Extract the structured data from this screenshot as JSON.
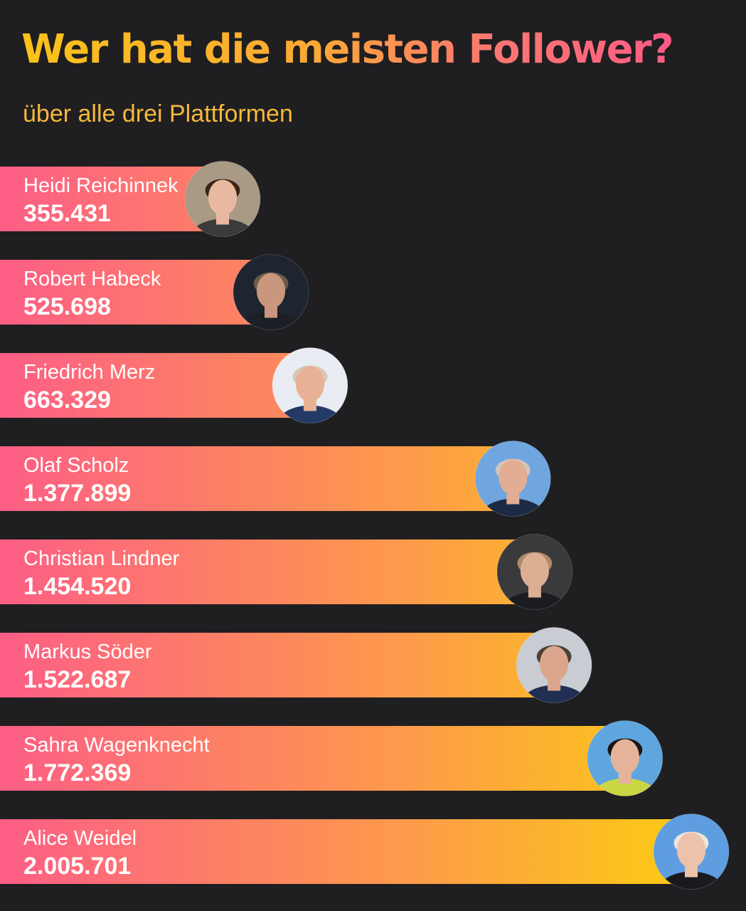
{
  "header": {
    "title": "Wer hat die meisten Follower?",
    "subtitle": "über alle drei Plattformen"
  },
  "colors": {
    "background": "#1f1e20",
    "bar_start": "#fd5e86",
    "bar_mid": "#fd9b4a",
    "bar_end": "#fcca14",
    "title_yellow": "#fbc21a",
    "title_pink": "#fc5c86"
  },
  "chart_data": {
    "type": "bar",
    "orientation": "horizontal",
    "title": "Wer hat die meisten Follower?",
    "subtitle": "über alle drei Plattformen",
    "xlabel": "",
    "ylabel": "",
    "grid": false,
    "legend": "none",
    "categories": [
      "Heidi Reichinnek",
      "Robert Habeck",
      "Friedrich Merz",
      "Olaf Scholz",
      "Christian Lindner",
      "Markus Söder",
      "Sahra Wagenknecht",
      "Alice Weidel"
    ],
    "values": [
      355431,
      525698,
      663329,
      1377899,
      1454520,
      1522687,
      1772369,
      2005701
    ],
    "value_labels": [
      "355.431",
      "525.698",
      "663.329",
      "1.377.899",
      "1.454.520",
      "1.522.687",
      "1.772.369",
      "2.005.701"
    ],
    "markers": [
      {
        "icon": "heidi-reichinnek-portrait-icon",
        "bg": "#a89a84",
        "hair": "#3a2418",
        "skin": "#e8b9a0",
        "cloth": "#3b3b3b"
      },
      {
        "icon": "robert-habeck-portrait-icon",
        "bg": "#1e2430",
        "hair": "#6a5a4a",
        "skin": "#c9977d",
        "cloth": "#1d1f26"
      },
      {
        "icon": "friedrich-merz-portrait-icon",
        "bg": "#e9ecf2",
        "hair": "#d8c7b4",
        "skin": "#e8b196",
        "cloth": "#233a66"
      },
      {
        "icon": "olaf-scholz-portrait-icon",
        "bg": "#6fa6e0",
        "hair": "#cfc6bd",
        "skin": "#e2ad92",
        "cloth": "#1c2a45"
      },
      {
        "icon": "christian-lindner-portrait-icon",
        "bg": "#3a3a3c",
        "hair": "#b08a66",
        "skin": "#dcae92",
        "cloth": "#1b1c22"
      },
      {
        "icon": "markus-soeder-portrait-icon",
        "bg": "#c9ccd2",
        "hair": "#4a4036",
        "skin": "#dba68c",
        "cloth": "#1f2e52"
      },
      {
        "icon": "sahra-wagenknecht-portrait-icon",
        "bg": "#5fa6df",
        "hair": "#1c1512",
        "skin": "#e4b39a",
        "cloth": "#c9d742"
      },
      {
        "icon": "alice-weidel-portrait-icon",
        "bg": "#5e9ee0",
        "hair": "#ece6dc",
        "skin": "#ecc2aa",
        "cloth": "#1a1a1e"
      }
    ]
  }
}
